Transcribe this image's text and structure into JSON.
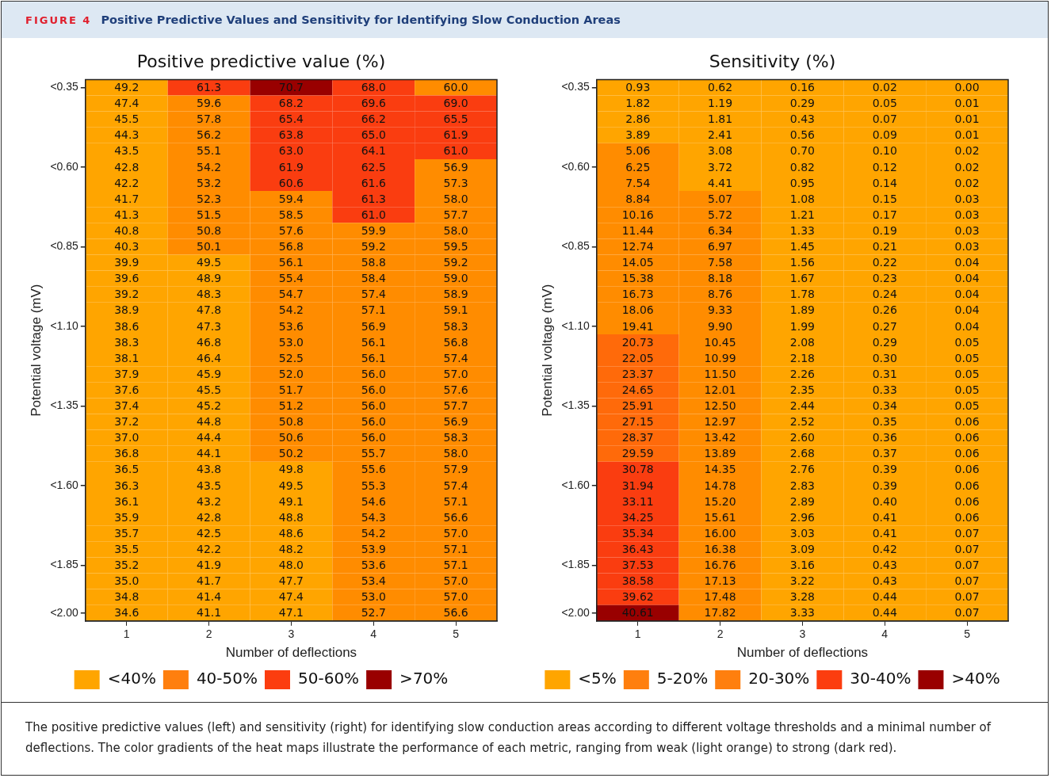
{
  "chart_data": [
    {
      "type": "heatmap",
      "title": "Positive predictive value (%)",
      "xlabel": "Number of deflections",
      "ylabel": "Potential voltage (mV)",
      "annotations": [
        "FIGURE 4",
        "Positive Predictive Values and Sensitivity for Identifying Slow Conduction Areas"
      ],
      "categories": [
        "1",
        "2",
        "3",
        "4",
        "5"
      ],
      "y_categories": [
        "<0.35",
        null,
        null,
        null,
        null,
        "<0.60",
        null,
        null,
        null,
        null,
        "<0.85",
        null,
        null,
        null,
        null,
        "<1.10",
        null,
        null,
        null,
        null,
        "<1.35",
        null,
        null,
        null,
        null,
        "<1.60",
        null,
        null,
        null,
        null,
        "<1.85",
        null,
        null,
        "<2.00"
      ],
      "legend": "bottom",
      "series": [
        {
          "name": "<40%",
          "color": "#ffa500",
          "values": [
            null,
            null,
            null,
            null,
            null
          ]
        },
        {
          "name": "40-50%",
          "color": "#ff7f0e",
          "values": [
            null,
            null,
            null,
            null,
            null
          ]
        },
        {
          "name": "50-60%",
          "color": "#fc3d0f",
          "values": [
            null,
            null,
            null,
            null,
            null
          ]
        },
        {
          "name": ">70%",
          "color": "#990000",
          "values": [
            null,
            null,
            null,
            null,
            null
          ]
        }
      ],
      "cells": [
        [
          49.2,
          61.3,
          70.7,
          68.0,
          60.0
        ],
        [
          47.4,
          59.6,
          68.2,
          69.6,
          69.0
        ],
        [
          45.5,
          57.8,
          65.4,
          66.2,
          65.5
        ],
        [
          44.3,
          56.2,
          63.8,
          65.0,
          61.9
        ],
        [
          43.5,
          55.1,
          63.0,
          64.1,
          61.0
        ],
        [
          42.8,
          54.2,
          61.9,
          62.5,
          56.9
        ],
        [
          42.2,
          53.2,
          60.6,
          61.6,
          57.3
        ],
        [
          41.7,
          52.3,
          59.4,
          61.3,
          58.0
        ],
        [
          41.3,
          51.5,
          58.5,
          61.0,
          57.7
        ],
        [
          40.8,
          50.8,
          57.6,
          59.9,
          58.0
        ],
        [
          40.3,
          50.1,
          56.8,
          59.2,
          59.5
        ],
        [
          39.9,
          49.5,
          56.1,
          58.8,
          59.2
        ],
        [
          39.6,
          48.9,
          55.4,
          58.4,
          59.0
        ],
        [
          39.2,
          48.3,
          54.7,
          57.4,
          58.9
        ],
        [
          38.9,
          47.8,
          54.2,
          57.1,
          59.1
        ],
        [
          38.6,
          47.3,
          53.6,
          56.9,
          58.3
        ],
        [
          38.3,
          46.8,
          53.0,
          56.1,
          56.8
        ],
        [
          38.1,
          46.4,
          52.5,
          56.1,
          57.4
        ],
        [
          37.9,
          45.9,
          52.0,
          56.0,
          57.0
        ],
        [
          37.6,
          45.5,
          51.7,
          56.0,
          57.6
        ],
        [
          37.4,
          45.2,
          51.2,
          56.0,
          57.7
        ],
        [
          37.2,
          44.8,
          50.8,
          56.0,
          56.9
        ],
        [
          37.0,
          44.4,
          50.6,
          56.0,
          58.3
        ],
        [
          36.8,
          44.1,
          50.2,
          55.7,
          58.0
        ],
        [
          36.5,
          43.8,
          49.8,
          55.6,
          57.9
        ],
        [
          36.3,
          43.5,
          49.5,
          55.3,
          57.4
        ],
        [
          36.1,
          43.2,
          49.1,
          54.6,
          57.1
        ],
        [
          35.9,
          42.8,
          48.8,
          54.3,
          56.6
        ],
        [
          35.7,
          42.5,
          48.6,
          54.2,
          57.0
        ],
        [
          35.5,
          42.2,
          48.2,
          53.9,
          57.1
        ],
        [
          35.2,
          41.9,
          48.0,
          53.6,
          57.1
        ],
        [
          35.0,
          41.7,
          47.7,
          53.4,
          57.0
        ],
        [
          34.8,
          41.4,
          47.4,
          53.0,
          57.0
        ],
        [
          34.6,
          41.1,
          47.1,
          52.7,
          56.6
        ]
      ],
      "cell_labels": [
        [
          "49.2",
          "61.3",
          "70.7",
          "68.0",
          "60.0"
        ],
        [
          "47.4",
          "59.6",
          "68.2",
          "69.6",
          "69.0"
        ],
        [
          "45.5",
          "57.8",
          "65.4",
          "66.2",
          "65.5"
        ],
        [
          "44.3",
          "56.2",
          "63.8",
          "65.0",
          "61.9"
        ],
        [
          "43.5",
          "55.1",
          "63.0",
          "64.1",
          "61.0"
        ],
        [
          "42.8",
          "54.2",
          "61.9",
          "62.5",
          "56.9"
        ],
        [
          "42.2",
          "53.2",
          "60.6",
          "61.6",
          "57.3"
        ],
        [
          "41.7",
          "52.3",
          "59.4",
          "61.3",
          "58.0"
        ],
        [
          "41.3",
          "51.5",
          "58.5",
          "61.0",
          "57.7"
        ],
        [
          "40.8",
          "50.8",
          "57.6",
          "59.9",
          "58.0"
        ],
        [
          "40.3",
          "50.1",
          "56.8",
          "59.2",
          "59.5"
        ],
        [
          "39.9",
          "49.5",
          "56.1",
          "58.8",
          "59.2"
        ],
        [
          "39.6",
          "48.9",
          "55.4",
          "58.4",
          "59.0"
        ],
        [
          "39.2",
          "48.3",
          "54.7",
          "57.4",
          "58.9"
        ],
        [
          "38.9",
          "47.8",
          "54.2",
          "57.1",
          "59.1"
        ],
        [
          "38.6",
          "47.3",
          "53.6",
          "56.9",
          "58.3"
        ],
        [
          "38.3",
          "46.8",
          "53.0",
          "56.1",
          "56.8"
        ],
        [
          "38.1",
          "46.4",
          "52.5",
          "56.1",
          "57.4"
        ],
        [
          "37.9",
          "45.9",
          "52.0",
          "56.0",
          "57.0"
        ],
        [
          "37.6",
          "45.5",
          "51.7",
          "56.0",
          "57.6"
        ],
        [
          "37.4",
          "45.2",
          "51.2",
          "56.0",
          "57.7"
        ],
        [
          "37.2",
          "44.8",
          "50.8",
          "56.0",
          "56.9"
        ],
        [
          "37.0",
          "44.4",
          "50.6",
          "56.0",
          "58.3"
        ],
        [
          "36.8",
          "44.1",
          "50.2",
          "55.7",
          "58.0"
        ],
        [
          "36.5",
          "43.8",
          "49.8",
          "55.6",
          "57.9"
        ],
        [
          "36.3",
          "43.5",
          "49.5",
          "55.3",
          "57.4"
        ],
        [
          "36.1",
          "43.2",
          "49.1",
          "54.6",
          "57.1"
        ],
        [
          "35.9",
          "42.8",
          "48.8",
          "54.3",
          "56.6"
        ],
        [
          "35.7",
          "42.5",
          "48.6",
          "54.2",
          "57.0"
        ],
        [
          "35.5",
          "42.2",
          "48.2",
          "53.9",
          "57.1"
        ],
        [
          "35.2",
          "41.9",
          "48.0",
          "53.6",
          "57.1"
        ],
        [
          "35.0",
          "41.7",
          "47.7",
          "53.4",
          "57.0"
        ],
        [
          "34.8",
          "41.4",
          "47.4",
          "53.0",
          "57.0"
        ],
        [
          "34.6",
          "41.1",
          "47.1",
          "52.7",
          "56.6"
        ]
      ],
      "colors": [
        [
          "#ffa500",
          "#fa3d10",
          "#990000",
          "#fa3d10",
          "#ff8c00"
        ],
        [
          "#ffa500",
          "#ff8c00",
          "#fa3d10",
          "#fa3d10",
          "#fa3d10"
        ],
        [
          "#ffa500",
          "#ff8c00",
          "#fa3d10",
          "#fa3d10",
          "#fa3d10"
        ],
        [
          "#ffa500",
          "#ff8c00",
          "#fa3d10",
          "#fa3d10",
          "#fa3d10"
        ],
        [
          "#ffa500",
          "#ff8c00",
          "#fa3d10",
          "#fa3d10",
          "#fa3d10"
        ],
        [
          "#ffa500",
          "#ff8c00",
          "#fa3d10",
          "#fa3d10",
          "#ff8c00"
        ],
        [
          "#ffa500",
          "#ff8c00",
          "#fa3d10",
          "#fa3d10",
          "#ff8c00"
        ],
        [
          "#ffa500",
          "#ff8c00",
          "#ff8c00",
          "#fa3d10",
          "#ff8c00"
        ],
        [
          "#ffa500",
          "#ff8c00",
          "#ff8c00",
          "#fa3d10",
          "#ff8c00"
        ],
        [
          "#ffa500",
          "#ff8c00",
          "#ff8c00",
          "#ff8c00",
          "#ff8c00"
        ],
        [
          "#ffa500",
          "#ff8c00",
          "#ff8c00",
          "#ff8c00",
          "#ff8c00"
        ],
        [
          "#ffa500",
          "#ffa500",
          "#ff8c00",
          "#ff8c00",
          "#ff8c00"
        ],
        [
          "#ffa500",
          "#ffa500",
          "#ff8c00",
          "#ff8c00",
          "#ff8c00"
        ],
        [
          "#ffa500",
          "#ffa500",
          "#ff8c00",
          "#ff8c00",
          "#ff8c00"
        ],
        [
          "#ffa500",
          "#ffa500",
          "#ff8c00",
          "#ff8c00",
          "#ff8c00"
        ],
        [
          "#ffa500",
          "#ffa500",
          "#ff8c00",
          "#ff8c00",
          "#ff8c00"
        ],
        [
          "#ffa500",
          "#ffa500",
          "#ff8c00",
          "#ff8c00",
          "#ff8c00"
        ],
        [
          "#ffa500",
          "#ffa500",
          "#ff8c00",
          "#ff8c00",
          "#ff8c00"
        ],
        [
          "#ffa500",
          "#ffa500",
          "#ff8c00",
          "#ff8c00",
          "#ff8c00"
        ],
        [
          "#ffa500",
          "#ffa500",
          "#ff8c00",
          "#ff8c00",
          "#ff8c00"
        ],
        [
          "#ffa500",
          "#ffa500",
          "#ff8c00",
          "#ff8c00",
          "#ff8c00"
        ],
        [
          "#ffa500",
          "#ffa500",
          "#ff8c00",
          "#ff8c00",
          "#ff8c00"
        ],
        [
          "#ffa500",
          "#ffa500",
          "#ff8c00",
          "#ff8c00",
          "#ff8c00"
        ],
        [
          "#ffa500",
          "#ffa500",
          "#ff8c00",
          "#ff8c00",
          "#ff8c00"
        ],
        [
          "#ffa500",
          "#ffa500",
          "#ffa500",
          "#ff8c00",
          "#ff8c00"
        ],
        [
          "#ffa500",
          "#ffa500",
          "#ffa500",
          "#ff8c00",
          "#ff8c00"
        ],
        [
          "#ffa500",
          "#ffa500",
          "#ffa500",
          "#ff8c00",
          "#ff8c00"
        ],
        [
          "#ffa500",
          "#ffa500",
          "#ffa500",
          "#ff8c00",
          "#ff8c00"
        ],
        [
          "#ffa500",
          "#ffa500",
          "#ffa500",
          "#ff8c00",
          "#ff8c00"
        ],
        [
          "#ffa500",
          "#ffa500",
          "#ffa500",
          "#ff8c00",
          "#ff8c00"
        ],
        [
          "#ffa500",
          "#ffa500",
          "#ffa500",
          "#ff8c00",
          "#ff8c00"
        ],
        [
          "#ffa500",
          "#ffa500",
          "#ffa500",
          "#ff8c00",
          "#ff8c00"
        ],
        [
          "#ffa500",
          "#ffa500",
          "#ffa500",
          "#ff8c00",
          "#ff8c00"
        ],
        [
          "#ffa500",
          "#ffa500",
          "#ffa500",
          "#ff8c00",
          "#ff8c00"
        ]
      ]
    },
    {
      "type": "heatmap",
      "title": "Sensitivity (%)",
      "xlabel": "Number of deflections",
      "ylabel": "Potential voltage (mV)",
      "annotations": [
        "The positive predictive values (left) and sensitivity (right) for identifying slow conduction areas according to different voltage thresholds and a minimal number of deflections. The color gradients of the heat maps illustrate the performance of each metric, ranging from weak (light orange) to strong (dark red)."
      ],
      "categories": [
        "1",
        "2",
        "3",
        "4",
        "5"
      ],
      "y_categories": [
        "<0.35",
        null,
        null,
        null,
        null,
        "<0.60",
        null,
        null,
        null,
        null,
        "<0.85",
        null,
        null,
        null,
        null,
        "<1.10",
        null,
        null,
        null,
        null,
        "<1.35",
        null,
        null,
        null,
        null,
        "<1.60",
        null,
        null,
        null,
        null,
        "<1.85",
        null,
        null,
        "<2.00"
      ],
      "legend": "bottom",
      "series": [
        {
          "name": "<5%",
          "color": "#ffa500",
          "values": [
            null,
            null,
            null,
            null,
            null
          ]
        },
        {
          "name": "5-20%",
          "color": "#ff7f0e",
          "values": [
            null,
            null,
            null,
            null,
            null
          ]
        },
        {
          "name": "20-30%",
          "color": "#ff7f0e",
          "values": [
            null,
            null,
            null,
            null,
            null
          ]
        },
        {
          "name": "30-40%",
          "color": "#fc3d0f",
          "values": [
            null,
            null,
            null,
            null,
            null
          ]
        },
        {
          "name": ">40%",
          "color": "#990000",
          "values": [
            null,
            null,
            null,
            null,
            null
          ]
        }
      ],
      "cells": [
        [
          0.93,
          0.62,
          0.16,
          0.02,
          0.0
        ],
        [
          1.82,
          1.19,
          0.29,
          0.05,
          0.01
        ],
        [
          2.86,
          1.81,
          0.43,
          0.07,
          0.01
        ],
        [
          3.89,
          2.41,
          0.56,
          0.09,
          0.01
        ],
        [
          5.06,
          3.08,
          0.7,
          0.1,
          0.02
        ],
        [
          6.25,
          3.72,
          0.82,
          0.12,
          0.02
        ],
        [
          7.54,
          4.41,
          0.95,
          0.14,
          0.02
        ],
        [
          8.84,
          5.07,
          1.08,
          0.15,
          0.03
        ],
        [
          10.16,
          5.72,
          1.21,
          0.17,
          0.03
        ],
        [
          11.44,
          6.34,
          1.33,
          0.19,
          0.03
        ],
        [
          12.74,
          6.97,
          1.45,
          0.21,
          0.03
        ],
        [
          14.05,
          7.58,
          1.56,
          0.22,
          0.04
        ],
        [
          15.38,
          8.18,
          1.67,
          0.23,
          0.04
        ],
        [
          16.73,
          8.76,
          1.78,
          0.24,
          0.04
        ],
        [
          18.06,
          9.33,
          1.89,
          0.26,
          0.04
        ],
        [
          19.41,
          9.9,
          1.99,
          0.27,
          0.04
        ],
        [
          20.73,
          10.45,
          2.08,
          0.29,
          0.05
        ],
        [
          22.05,
          10.99,
          2.18,
          0.3,
          0.05
        ],
        [
          23.37,
          11.5,
          2.26,
          0.31,
          0.05
        ],
        [
          24.65,
          12.01,
          2.35,
          0.33,
          0.05
        ],
        [
          25.91,
          12.5,
          2.44,
          0.34,
          0.05
        ],
        [
          27.15,
          12.97,
          2.52,
          0.35,
          0.06
        ],
        [
          28.37,
          13.42,
          2.6,
          0.36,
          0.06
        ],
        [
          29.59,
          13.89,
          2.68,
          0.37,
          0.06
        ],
        [
          30.78,
          14.35,
          2.76,
          0.39,
          0.06
        ],
        [
          31.94,
          14.78,
          2.83,
          0.39,
          0.06
        ],
        [
          33.11,
          15.2,
          2.89,
          0.4,
          0.06
        ],
        [
          34.25,
          15.61,
          2.96,
          0.41,
          0.06
        ],
        [
          35.34,
          16.0,
          3.03,
          0.41,
          0.07
        ],
        [
          36.43,
          16.38,
          3.09,
          0.42,
          0.07
        ],
        [
          37.53,
          16.76,
          3.16,
          0.43,
          0.07
        ],
        [
          38.58,
          17.13,
          3.22,
          0.43,
          0.07
        ],
        [
          39.62,
          17.48,
          3.28,
          0.44,
          0.07
        ],
        [
          40.61,
          17.82,
          3.33,
          0.44,
          0.07
        ]
      ],
      "cell_labels": [
        [
          "0.93",
          "0.62",
          "0.16",
          "0.02",
          "0.00"
        ],
        [
          "1.82",
          "1.19",
          "0.29",
          "0.05",
          "0.01"
        ],
        [
          "2.86",
          "1.81",
          "0.43",
          "0.07",
          "0.01"
        ],
        [
          "3.89",
          "2.41",
          "0.56",
          "0.09",
          "0.01"
        ],
        [
          "5.06",
          "3.08",
          "0.70",
          "0.10",
          "0.02"
        ],
        [
          "6.25",
          "3.72",
          "0.82",
          "0.12",
          "0.02"
        ],
        [
          "7.54",
          "4.41",
          "0.95",
          "0.14",
          "0.02"
        ],
        [
          "8.84",
          "5.07",
          "1.08",
          "0.15",
          "0.03"
        ],
        [
          "10.16",
          "5.72",
          "1.21",
          "0.17",
          "0.03"
        ],
        [
          "11.44",
          "6.34",
          "1.33",
          "0.19",
          "0.03"
        ],
        [
          "12.74",
          "6.97",
          "1.45",
          "0.21",
          "0.03"
        ],
        [
          "14.05",
          "7.58",
          "1.56",
          "0.22",
          "0.04"
        ],
        [
          "15.38",
          "8.18",
          "1.67",
          "0.23",
          "0.04"
        ],
        [
          "16.73",
          "8.76",
          "1.78",
          "0.24",
          "0.04"
        ],
        [
          "18.06",
          "9.33",
          "1.89",
          "0.26",
          "0.04"
        ],
        [
          "19.41",
          "9.90",
          "1.99",
          "0.27",
          "0.04"
        ],
        [
          "20.73",
          "10.45",
          "2.08",
          "0.29",
          "0.05"
        ],
        [
          "22.05",
          "10.99",
          "2.18",
          "0.30",
          "0.05"
        ],
        [
          "23.37",
          "11.50",
          "2.26",
          "0.31",
          "0.05"
        ],
        [
          "24.65",
          "12.01",
          "2.35",
          "0.33",
          "0.05"
        ],
        [
          "25.91",
          "12.50",
          "2.44",
          "0.34",
          "0.05"
        ],
        [
          "27.15",
          "12.97",
          "2.52",
          "0.35",
          "0.06"
        ],
        [
          "28.37",
          "13.42",
          "2.60",
          "0.36",
          "0.06"
        ],
        [
          "29.59",
          "13.89",
          "2.68",
          "0.37",
          "0.06"
        ],
        [
          "30.78",
          "14.35",
          "2.76",
          "0.39",
          "0.06"
        ],
        [
          "31.94",
          "14.78",
          "2.83",
          "0.39",
          "0.06"
        ],
        [
          "33.11",
          "15.20",
          "2.89",
          "0.40",
          "0.06"
        ],
        [
          "34.25",
          "15.61",
          "2.96",
          "0.41",
          "0.06"
        ],
        [
          "35.34",
          "16.00",
          "3.03",
          "0.41",
          "0.07"
        ],
        [
          "36.43",
          "16.38",
          "3.09",
          "0.42",
          "0.07"
        ],
        [
          "37.53",
          "16.76",
          "3.16",
          "0.43",
          "0.07"
        ],
        [
          "38.58",
          "17.13",
          "3.22",
          "0.43",
          "0.07"
        ],
        [
          "39.62",
          "17.48",
          "3.28",
          "0.44",
          "0.07"
        ],
        [
          "40.61",
          "17.82",
          "3.33",
          "0.44",
          "0.07"
        ]
      ],
      "colors": [
        [
          "#ffa500",
          "#ffa500",
          "#ffa500",
          "#ffa500",
          "#ffa500"
        ],
        [
          "#ffa500",
          "#ffa500",
          "#ffa500",
          "#ffa500",
          "#ffa500"
        ],
        [
          "#ffa500",
          "#ffa500",
          "#ffa500",
          "#ffa500",
          "#ffa500"
        ],
        [
          "#ffa500",
          "#ffa500",
          "#ffa500",
          "#ffa500",
          "#ffa500"
        ],
        [
          "#ff8c00",
          "#ffa500",
          "#ffa500",
          "#ffa500",
          "#ffa500"
        ],
        [
          "#ff8c00",
          "#ffa500",
          "#ffa500",
          "#ffa500",
          "#ffa500"
        ],
        [
          "#ff8c00",
          "#ffa500",
          "#ffa500",
          "#ffa500",
          "#ffa500"
        ],
        [
          "#ff8c00",
          "#ff8c00",
          "#ffa500",
          "#ffa500",
          "#ffa500"
        ],
        [
          "#ff8c00",
          "#ff8c00",
          "#ffa500",
          "#ffa500",
          "#ffa500"
        ],
        [
          "#ff8c00",
          "#ff8c00",
          "#ffa500",
          "#ffa500",
          "#ffa500"
        ],
        [
          "#ff8c00",
          "#ff8c00",
          "#ffa500",
          "#ffa500",
          "#ffa500"
        ],
        [
          "#ff8c00",
          "#ff8c00",
          "#ffa500",
          "#ffa500",
          "#ffa500"
        ],
        [
          "#ff8c00",
          "#ff8c00",
          "#ffa500",
          "#ffa500",
          "#ffa500"
        ],
        [
          "#ff8c00",
          "#ff8c00",
          "#ffa500",
          "#ffa500",
          "#ffa500"
        ],
        [
          "#ff8c00",
          "#ff8c00",
          "#ffa500",
          "#ffa500",
          "#ffa500"
        ],
        [
          "#ff8c00",
          "#ff8c00",
          "#ffa500",
          "#ffa500",
          "#ffa500"
        ],
        [
          "#ff6a0a",
          "#ff8c00",
          "#ffa500",
          "#ffa500",
          "#ffa500"
        ],
        [
          "#ff6a0a",
          "#ff8c00",
          "#ffa500",
          "#ffa500",
          "#ffa500"
        ],
        [
          "#ff6a0a",
          "#ff8c00",
          "#ffa500",
          "#ffa500",
          "#ffa500"
        ],
        [
          "#ff6a0a",
          "#ff8c00",
          "#ffa500",
          "#ffa500",
          "#ffa500"
        ],
        [
          "#ff6a0a",
          "#ff8c00",
          "#ffa500",
          "#ffa500",
          "#ffa500"
        ],
        [
          "#ff6a0a",
          "#ff8c00",
          "#ffa500",
          "#ffa500",
          "#ffa500"
        ],
        [
          "#ff6a0a",
          "#ff8c00",
          "#ffa500",
          "#ffa500",
          "#ffa500"
        ],
        [
          "#ff6a0a",
          "#ff8c00",
          "#ffa500",
          "#ffa500",
          "#ffa500"
        ],
        [
          "#fa3d10",
          "#ff8c00",
          "#ffa500",
          "#ffa500",
          "#ffa500"
        ],
        [
          "#fa3d10",
          "#ff8c00",
          "#ffa500",
          "#ffa500",
          "#ffa500"
        ],
        [
          "#fa3d10",
          "#ff8c00",
          "#ffa500",
          "#ffa500",
          "#ffa500"
        ],
        [
          "#fa3d10",
          "#ff8c00",
          "#ffa500",
          "#ffa500",
          "#ffa500"
        ],
        [
          "#fa3d10",
          "#ff8c00",
          "#ffa500",
          "#ffa500",
          "#ffa500"
        ],
        [
          "#fa3d10",
          "#ff8c00",
          "#ffa500",
          "#ffa500",
          "#ffa500"
        ],
        [
          "#fa3d10",
          "#ff8c00",
          "#ffa500",
          "#ffa500",
          "#ffa500"
        ],
        [
          "#fa3d10",
          "#ff8c00",
          "#ffa500",
          "#ffa500",
          "#ffa500"
        ],
        [
          "#fa3d10",
          "#ff8c00",
          "#ffa500",
          "#ffa500",
          "#ffa500"
        ],
        [
          "#990000",
          "#ff8c00",
          "#ffa500",
          "#ffa500",
          "#ffa500"
        ]
      ]
    }
  ]
}
